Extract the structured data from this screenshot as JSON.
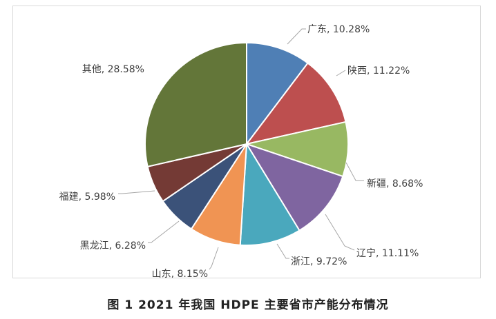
{
  "caption": "图 1  2021 年我国 HDPE 主要省市产能分布情况",
  "chart_data": {
    "type": "pie",
    "start_angle_deg": 0,
    "direction": "clockwise",
    "slices": [
      {
        "name": "广东",
        "value": 10.28,
        "label": "广东, 10.28%",
        "color": "#4F7FB5"
      },
      {
        "name": "陕西",
        "value": 11.22,
        "label": "陕西, 11.22%",
        "color": "#BD4F4F"
      },
      {
        "name": "新疆",
        "value": 8.68,
        "label": "新疆, 8.68%",
        "color": "#98B862"
      },
      {
        "name": "辽宁",
        "value": 11.11,
        "label": "辽宁, 11.11%",
        "color": "#7F65A0"
      },
      {
        "name": "浙江",
        "value": 9.72,
        "label": "浙江, 9.72%",
        "color": "#4AA8BD"
      },
      {
        "name": "山东",
        "value": 8.15,
        "label": "山东, 8.15%",
        "color": "#F09453"
      },
      {
        "name": "黑龙江",
        "value": 6.28,
        "label": "黑龙江, 6.28%",
        "color": "#3B5279"
      },
      {
        "name": "福建",
        "value": 5.98,
        "label": "福建, 5.98%",
        "color": "#743A35"
      },
      {
        "name": "其他",
        "value": 28.58,
        "label": "其他, 28.58%",
        "color": "#637639"
      }
    ]
  }
}
